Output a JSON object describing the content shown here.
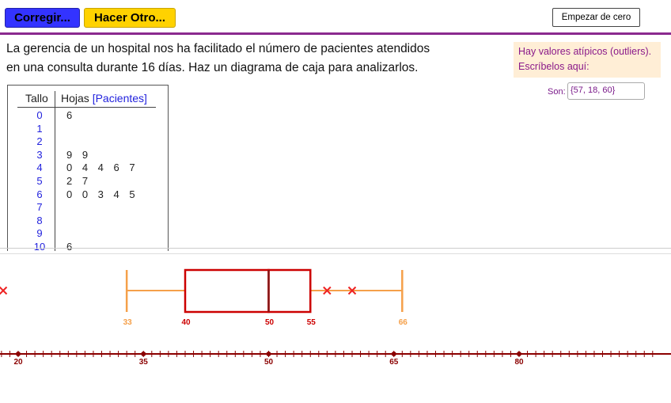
{
  "toolbar": {
    "correct_label": "Corregir...",
    "new_label": "Hacer Otro...",
    "reset_label": "Empezar de cero"
  },
  "problem": {
    "line1": "La gerencia de un hospital nos ha facilitado el número de pacientes atendidos",
    "line2": "en una consulta durante 16 días. Haz un diagrama de caja para analizarlos."
  },
  "outliers": {
    "prompt_line1": "Hay valores atípicos (outliers).",
    "prompt_line2": "Escríbelos aquí:",
    "answer_label": "Son:",
    "answer_value": "{57, 18, 60}"
  },
  "stem_leaf": {
    "stem_header": "Tallo",
    "leaves_header": "Hojas",
    "leaves_unit": "[Pacientes]",
    "rows": [
      {
        "stem": "0",
        "leaves": "6"
      },
      {
        "stem": "1",
        "leaves": ""
      },
      {
        "stem": "2",
        "leaves": ""
      },
      {
        "stem": "3",
        "leaves": "9 9"
      },
      {
        "stem": "4",
        "leaves": "0 4 4 6 7"
      },
      {
        "stem": "5",
        "leaves": "2 7"
      },
      {
        "stem": "6",
        "leaves": "0 0 3 4 5"
      },
      {
        "stem": "7",
        "leaves": ""
      },
      {
        "stem": "8",
        "leaves": ""
      },
      {
        "stem": "9",
        "leaves": ""
      },
      {
        "stem": "10",
        "leaves": "6"
      }
    ]
  },
  "chart_data": {
    "type": "boxplot",
    "whisker_low": 33,
    "q1": 40,
    "median": 50,
    "q3": 55,
    "whisker_high": 66,
    "outlier_marks": [
      18,
      57,
      60
    ],
    "box_labels": [
      "33",
      "40",
      "50",
      "55",
      "66"
    ],
    "axis_ticks": [
      20,
      35,
      50,
      65,
      80
    ],
    "axis_minor_step": 1,
    "colors": {
      "box": "#cc0000",
      "whisker": "#f5a04a",
      "outlier": "#ee2222",
      "axis": "#8b0000",
      "median": "#7a1a1a"
    }
  }
}
